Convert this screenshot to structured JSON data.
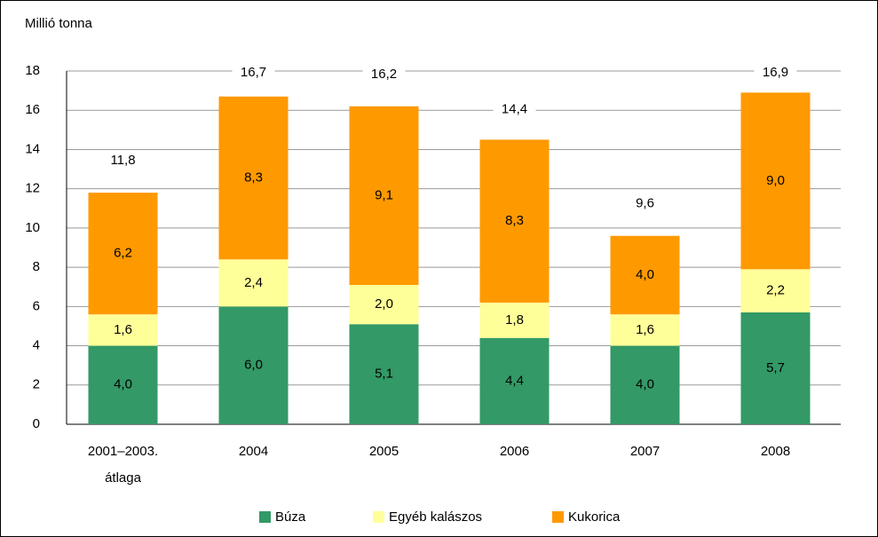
{
  "chart_data": {
    "type": "stacked_bar",
    "ylabel": "Millió tonna",
    "categories": [
      [
        "2001–2003.",
        "átlaga"
      ],
      "2004",
      "2005",
      "2006",
      "2007",
      "2008"
    ],
    "series": [
      {
        "name": "Búza",
        "color": "#339966",
        "values": [
          4.0,
          6.0,
          5.1,
          4.4,
          4.0,
          5.7
        ],
        "value_labels": [
          "4,0",
          "6,0",
          "5,1",
          "4,4",
          "4,0",
          "5,7"
        ]
      },
      {
        "name": "Egyéb kalászos",
        "color": "#ffff99",
        "values": [
          1.6,
          2.4,
          2.0,
          1.8,
          1.6,
          2.2
        ],
        "value_labels": [
          "1,6",
          "2,4",
          "2,0",
          "1,8",
          "1,6",
          "2,2"
        ]
      },
      {
        "name": "Kukorica",
        "color": "#ff9900",
        "values": [
          6.2,
          8.3,
          9.1,
          8.3,
          4.0,
          9.0
        ],
        "value_labels": [
          "6,2",
          "8,3",
          "9,1",
          "8,3",
          "4,0",
          "9,0"
        ]
      }
    ],
    "totals": [
      11.8,
      16.7,
      16.2,
      14.4,
      9.6,
      16.9
    ],
    "total_labels": [
      "11,8",
      "16,7",
      "16,2",
      "14,4",
      "9,6",
      "16,9"
    ],
    "ylim": [
      0,
      18
    ],
    "yticks": [
      0,
      2,
      4,
      6,
      8,
      10,
      12,
      14,
      16,
      18
    ],
    "grid": true,
    "legend": "bottom"
  }
}
